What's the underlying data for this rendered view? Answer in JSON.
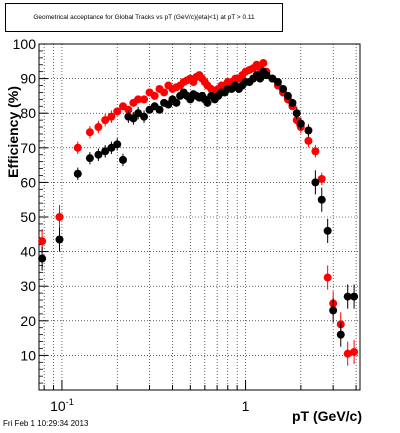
{
  "chart_data": {
    "type": "scatter",
    "title": "Geometrical acceptance for Global Tracks vs pT (GeV/c)(eta|<1) at pT > 0.11",
    "xlabel": "pT (GeV/c)",
    "ylabel": "Efficiency (%)",
    "x_scale": "log",
    "xlim": [
      0.075,
      4.2
    ],
    "ylim": [
      0,
      100
    ],
    "grid": true,
    "legend": "none",
    "y_ticks": [
      10,
      20,
      30,
      40,
      50,
      60,
      70,
      80,
      90,
      100
    ],
    "y_tick_labels": [
      "10",
      "20",
      "30",
      "40",
      "50",
      "60",
      "70",
      "80",
      "90",
      "100"
    ],
    "x_tick_labels": [
      {
        "value": 0.1,
        "base": "10",
        "exp": "-1"
      },
      {
        "value": 1,
        "base": "1",
        "exp": ""
      }
    ],
    "series": [
      {
        "color": "#ff0000",
        "x": [
          0.078,
          0.097,
          0.122,
          0.142,
          0.158,
          0.172,
          0.186,
          0.2,
          0.215,
          0.23,
          0.245,
          0.26,
          0.28,
          0.3,
          0.32,
          0.34,
          0.36,
          0.38,
          0.4,
          0.42,
          0.44,
          0.46,
          0.48,
          0.5,
          0.52,
          0.54,
          0.56,
          0.58,
          0.6,
          0.62,
          0.65,
          0.68,
          0.71,
          0.74,
          0.77,
          0.8,
          0.84,
          0.88,
          0.92,
          0.96,
          1.0,
          1.05,
          1.1,
          1.15,
          1.2,
          1.25,
          1.3,
          1.4,
          1.5,
          1.6,
          1.7,
          1.8,
          1.9,
          2.0,
          2.2,
          2.4,
          2.6,
          2.8,
          3.0,
          3.3,
          3.6,
          3.9
        ],
        "y": [
          43,
          50,
          70,
          74.5,
          76,
          78,
          79,
          80.5,
          82,
          81,
          83,
          84,
          84,
          86,
          85,
          87,
          86,
          88,
          87,
          87.5,
          88,
          89,
          89.5,
          90,
          89,
          90.5,
          91,
          90,
          89,
          88,
          87,
          86,
          87,
          88,
          88,
          89,
          89,
          90,
          90,
          91,
          92,
          92.5,
          93,
          94,
          93,
          94.5,
          92,
          90,
          88,
          86,
          84,
          82,
          78,
          76,
          72,
          69,
          61,
          32.5,
          25,
          19,
          10.5,
          11
        ]
      },
      {
        "color": "#000000",
        "x": [
          0.078,
          0.097,
          0.122,
          0.142,
          0.158,
          0.172,
          0.186,
          0.2,
          0.215,
          0.23,
          0.245,
          0.26,
          0.28,
          0.3,
          0.32,
          0.34,
          0.36,
          0.38,
          0.4,
          0.42,
          0.44,
          0.46,
          0.48,
          0.5,
          0.52,
          0.54,
          0.56,
          0.58,
          0.6,
          0.62,
          0.65,
          0.68,
          0.71,
          0.74,
          0.77,
          0.8,
          0.84,
          0.88,
          0.92,
          0.96,
          1.0,
          1.05,
          1.1,
          1.15,
          1.2,
          1.25,
          1.3,
          1.4,
          1.5,
          1.6,
          1.7,
          1.8,
          1.9,
          2.0,
          2.2,
          2.4,
          2.6,
          2.8,
          3.0,
          3.3,
          3.6,
          3.9
        ],
        "y": [
          38,
          43.5,
          62.5,
          67,
          68,
          69,
          70,
          71,
          66.5,
          79,
          78.5,
          80,
          79,
          81,
          82,
          81,
          83,
          82.5,
          84,
          83,
          85,
          86,
          85,
          84,
          85.5,
          85,
          84.5,
          85,
          84,
          83,
          85,
          84,
          85,
          86,
          86,
          87,
          87,
          88,
          87,
          88,
          89,
          89,
          90,
          91,
          90,
          92,
          91,
          90,
          89,
          87,
          85,
          83,
          80,
          77,
          75,
          60,
          55,
          46,
          23,
          16,
          27,
          27
        ]
      }
    ]
  },
  "footer": {
    "timestamp": "Fri Feb  1 10:29:34 2013"
  }
}
